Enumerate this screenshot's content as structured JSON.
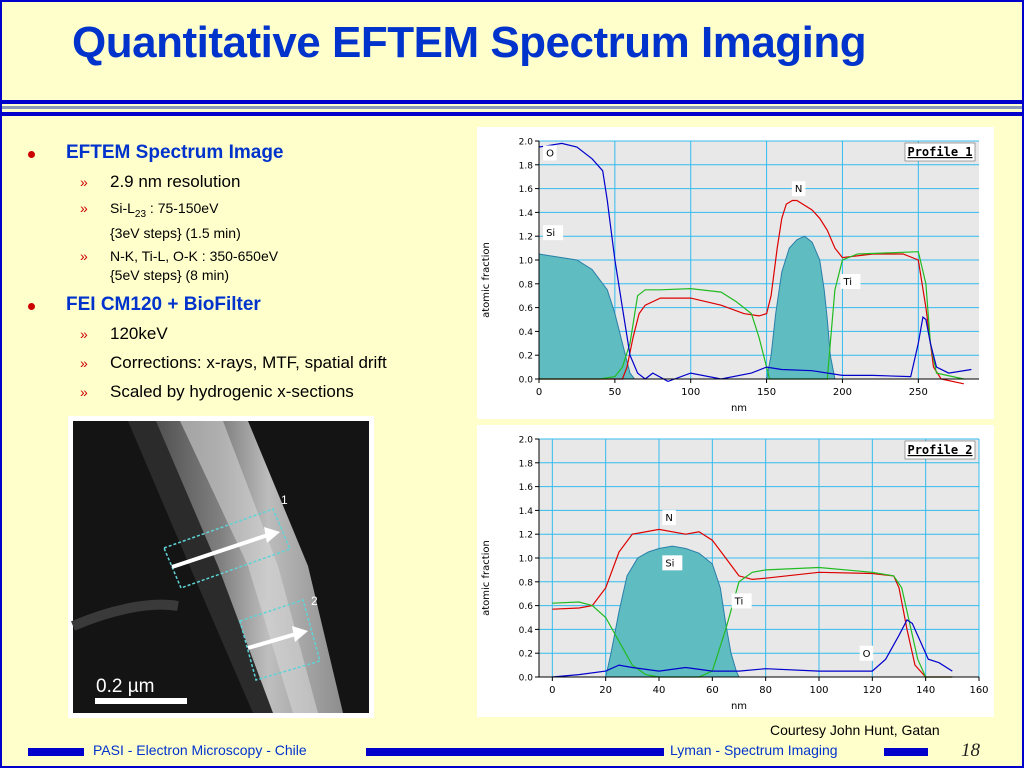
{
  "title": "Quantitative EFTEM Spectrum Imaging",
  "bullets": [
    {
      "label": "EFTEM Spectrum Image",
      "sub": [
        {
          "lines": [
            "2.9 nm resolution"
          ]
        },
        {
          "lines": [
            "Si-L23 :  75-150eV",
            "{3eV steps} (1.5 min)"
          ]
        },
        {
          "lines": [
            "N-K, Ti-L, O-K :   350-650eV",
            "{5eV steps} (8 min)"
          ]
        }
      ]
    },
    {
      "label": "FEI CM120 + BioFilter",
      "sub": [
        {
          "lines": [
            "120keV"
          ]
        },
        {
          "lines": [
            "Corrections: x-rays, MTF, spatial drift"
          ]
        },
        {
          "lines": [
            "Scaled by hydrogenic x-sections"
          ]
        }
      ]
    }
  ],
  "micrograph": {
    "scale_label": "0.2 µm",
    "marker_labels": [
      "1",
      "2"
    ]
  },
  "courtesy": "Courtesy John Hunt, Gatan",
  "footer": {
    "left": "PASI - Electron Microscopy - Chile",
    "right": "Lyman - Spectrum Imaging",
    "page": "18"
  },
  "colors": {
    "background": "#ffffcc",
    "accent": "#0000cc",
    "title": "#0033cc",
    "bullet": "#cc0000",
    "si_fill": "#5fbcc0",
    "n_line": "#dd0000",
    "ti_line": "#22bb22",
    "o_line": "#0000cc",
    "plot_bg": "#e8e8e8",
    "grid": "#33bbee"
  },
  "chart_data": [
    {
      "type": "area",
      "title": "Profile 1",
      "xlabel": "nm",
      "ylabel": "atomic fraction",
      "xlim": [
        0,
        290
      ],
      "ylim": [
        0,
        2.0
      ],
      "xticks": [
        0,
        50,
        100,
        150,
        200,
        250
      ],
      "yticks": [
        0.0,
        0.2,
        0.4,
        0.6,
        0.8,
        1.0,
        1.2,
        1.4,
        1.6,
        1.8,
        2.0
      ],
      "series": [
        {
          "name": "Si",
          "color": "#5fbcc0",
          "style": "filled",
          "x": [
            0,
            5,
            15,
            25,
            35,
            45,
            50,
            55,
            60,
            63,
            70,
            150,
            153,
            156,
            160,
            165,
            170,
            175,
            180,
            185,
            188,
            190,
            192,
            195,
            290
          ],
          "y": [
            1.05,
            1.04,
            1.02,
            1.0,
            0.92,
            0.75,
            0.55,
            0.3,
            0.05,
            0.0,
            0.0,
            0.0,
            0.2,
            0.55,
            0.9,
            1.1,
            1.17,
            1.2,
            1.15,
            1.0,
            0.75,
            0.5,
            0.2,
            0.0,
            0.0
          ]
        },
        {
          "name": "N",
          "color": "#dd0000",
          "x": [
            0,
            40,
            55,
            58,
            62,
            66,
            70,
            80,
            100,
            120,
            135,
            145,
            150,
            153,
            157,
            160,
            163,
            167,
            170,
            175,
            180,
            185,
            190,
            195,
            200,
            220,
            240,
            250,
            255,
            260,
            265,
            280
          ],
          "y": [
            0.0,
            0.0,
            0.0,
            0.1,
            0.35,
            0.55,
            0.62,
            0.68,
            0.68,
            0.62,
            0.55,
            0.53,
            0.55,
            0.7,
            1.1,
            1.35,
            1.47,
            1.5,
            1.5,
            1.46,
            1.42,
            1.35,
            1.25,
            1.1,
            1.02,
            1.05,
            1.05,
            1.0,
            0.6,
            0.1,
            0.0,
            -0.04
          ]
        },
        {
          "name": "Ti",
          "color": "#22bb22",
          "x": [
            0,
            40,
            50,
            55,
            60,
            65,
            70,
            80,
            100,
            120,
            130,
            140,
            145,
            150,
            152,
            190,
            192,
            195,
            200,
            210,
            230,
            250,
            255,
            258,
            262,
            280
          ],
          "y": [
            0.0,
            0.0,
            0.02,
            0.1,
            0.3,
            0.7,
            0.75,
            0.75,
            0.76,
            0.73,
            0.65,
            0.55,
            0.35,
            0.1,
            0.0,
            0.0,
            0.3,
            0.75,
            1.0,
            1.05,
            1.06,
            1.07,
            0.8,
            0.3,
            0.05,
            0.0
          ]
        },
        {
          "name": "O",
          "color": "#0000cc",
          "x": [
            0,
            5,
            15,
            25,
            35,
            42,
            45,
            47,
            50,
            55,
            60,
            65,
            70,
            75,
            85,
            100,
            120,
            140,
            150,
            160,
            180,
            200,
            220,
            245,
            250,
            253,
            255,
            258,
            262,
            270,
            285
          ],
          "y": [
            1.95,
            1.96,
            1.98,
            1.95,
            1.85,
            1.75,
            1.5,
            1.3,
            1.0,
            0.6,
            0.2,
            0.05,
            0.0,
            0.05,
            -0.02,
            0.05,
            0.0,
            0.05,
            0.1,
            0.08,
            0.07,
            0.03,
            0.03,
            0.02,
            0.3,
            0.52,
            0.5,
            0.3,
            0.1,
            0.05,
            0.08
          ]
        }
      ],
      "annotations": [
        {
          "text": "O",
          "x": 4,
          "y": 1.87
        },
        {
          "text": "Si",
          "x": 4,
          "y": 1.2
        },
        {
          "text": "N",
          "x": 168,
          "y": 1.57
        },
        {
          "text": "Ti",
          "x": 200,
          "y": 0.79
        }
      ]
    },
    {
      "type": "area",
      "title": "Profile 2",
      "xlabel": "nm",
      "ylabel": "atomic fraction",
      "xlim": [
        -5,
        160
      ],
      "ylim": [
        0,
        2.0
      ],
      "xticks": [
        0,
        20,
        40,
        60,
        80,
        100,
        120,
        140,
        160
      ],
      "yticks": [
        0.0,
        0.2,
        0.4,
        0.6,
        0.8,
        1.0,
        1.2,
        1.4,
        1.6,
        1.8,
        2.0
      ],
      "series": [
        {
          "name": "Si",
          "color": "#5fbcc0",
          "style": "filled",
          "x": [
            -5,
            20,
            22,
            25,
            28,
            32,
            36,
            40,
            45,
            50,
            55,
            60,
            63,
            65,
            67,
            69,
            70,
            160
          ],
          "y": [
            0.0,
            0.0,
            0.2,
            0.55,
            0.85,
            1.0,
            1.05,
            1.08,
            1.1,
            1.08,
            1.04,
            0.95,
            0.75,
            0.45,
            0.2,
            0.05,
            0.0,
            0.0
          ]
        },
        {
          "name": "N",
          "color": "#dd0000",
          "x": [
            0,
            10,
            15,
            20,
            25,
            30,
            40,
            50,
            55,
            60,
            65,
            70,
            75,
            80,
            100,
            120,
            128,
            130,
            133,
            136,
            140,
            150
          ],
          "y": [
            0.57,
            0.58,
            0.6,
            0.75,
            1.05,
            1.2,
            1.24,
            1.2,
            1.22,
            1.15,
            1.0,
            0.85,
            0.82,
            0.83,
            0.88,
            0.87,
            0.85,
            0.75,
            0.4,
            0.1,
            0.0,
            0.0
          ]
        },
        {
          "name": "Ti",
          "color": "#22bb22",
          "x": [
            0,
            10,
            15,
            20,
            25,
            30,
            35,
            40,
            55,
            60,
            65,
            70,
            75,
            80,
            100,
            120,
            128,
            131,
            134,
            137,
            140,
            150
          ],
          "y": [
            0.62,
            0.63,
            0.6,
            0.5,
            0.3,
            0.1,
            0.02,
            0.0,
            0.0,
            0.05,
            0.4,
            0.8,
            0.88,
            0.9,
            0.92,
            0.88,
            0.85,
            0.75,
            0.45,
            0.15,
            0.0,
            0.0
          ]
        },
        {
          "name": "O",
          "color": "#0000cc",
          "x": [
            0,
            10,
            20,
            25,
            30,
            40,
            50,
            60,
            70,
            80,
            100,
            120,
            125,
            130,
            133,
            135,
            138,
            141,
            145,
            150
          ],
          "y": [
            0.0,
            0.02,
            0.05,
            0.1,
            0.08,
            0.05,
            0.08,
            0.05,
            0.05,
            0.07,
            0.05,
            0.05,
            0.15,
            0.35,
            0.48,
            0.45,
            0.3,
            0.15,
            0.12,
            0.05
          ]
        }
      ],
      "annotations": [
        {
          "text": "N",
          "x": 42,
          "y": 1.31
        },
        {
          "text": "Si",
          "x": 42,
          "y": 0.93
        },
        {
          "text": "Ti",
          "x": 68,
          "y": 0.61
        },
        {
          "text": "O",
          "x": 116,
          "y": 0.17
        }
      ]
    }
  ]
}
